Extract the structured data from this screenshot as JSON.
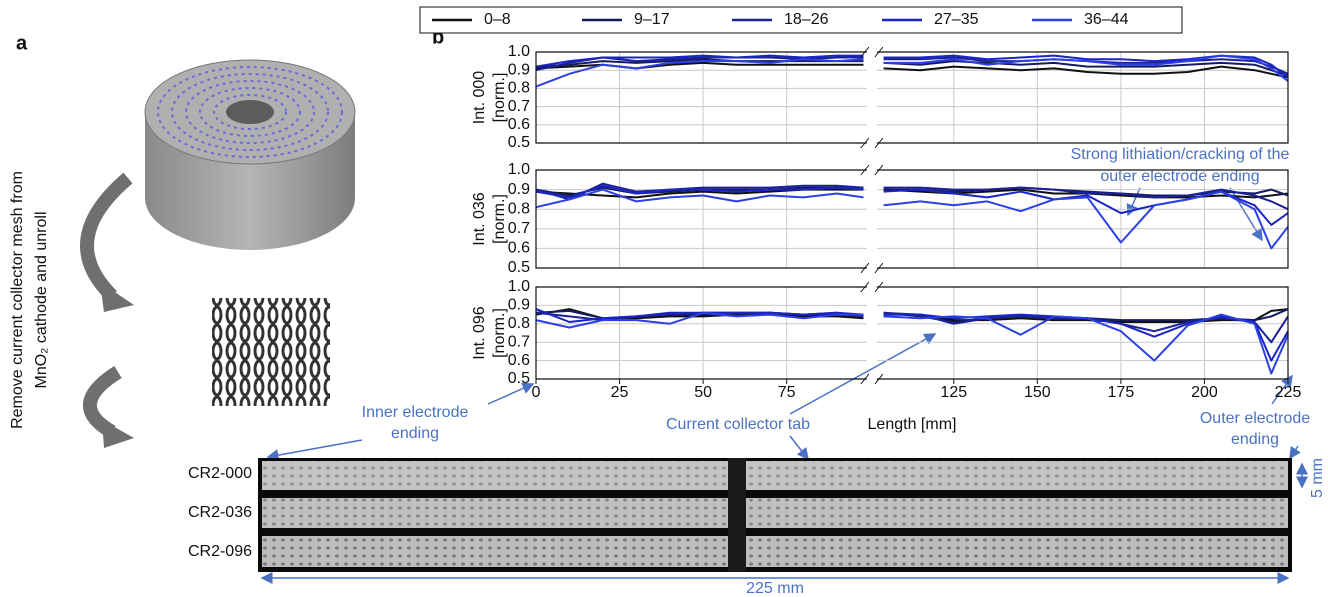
{
  "panel_labels": [
    "a",
    "b"
  ],
  "caption_lines": [
    "Remove current collector mesh from",
    "MnO₂ cathode and unroll"
  ],
  "annotations": {
    "lithiation": [
      "Strong lithiation/cracking of the",
      "outer electrode ending"
    ],
    "inner": [
      "Inner electrode",
      "ending"
    ],
    "tab": "Current collector tab",
    "outer": [
      "Outer electrode",
      "ending"
    ],
    "width": "5 mm",
    "length": "225 mm"
  },
  "strips": [
    "CR2-000",
    "CR2-036",
    "CR2-096"
  ],
  "chart_data": [
    {
      "type": "line",
      "ylabel": [
        "Int. 000",
        "[norm.]"
      ],
      "x": [
        0,
        10,
        20,
        30,
        40,
        50,
        60,
        70,
        80,
        90,
        98,
        101,
        104,
        115,
        125,
        135,
        145,
        155,
        165,
        175,
        185,
        195,
        205,
        215,
        220,
        225
      ],
      "xlim": [
        0,
        225
      ],
      "xticks": [
        0,
        25,
        50,
        75,
        125,
        150,
        175,
        200,
        225
      ],
      "xbreak": [
        99,
        102
      ],
      "ylim": [
        0.5,
        1.0
      ],
      "yticks": [
        0.5,
        0.6,
        0.7,
        0.8,
        0.9,
        {
          "value": 1.0,
          "label": "1.0"
        }
      ],
      "grid": true,
      "series": [
        {
          "name": "0–8",
          "color": "#111111",
          "values": [
            0.91,
            0.92,
            0.93,
            0.91,
            0.93,
            0.94,
            0.93,
            0.93,
            0.93,
            0.93,
            0.93,
            null,
            0.91,
            0.9,
            0.92,
            0.91,
            0.9,
            0.91,
            0.89,
            0.88,
            0.88,
            0.89,
            0.92,
            0.9,
            0.88,
            0.86
          ]
        },
        {
          "name": "9–17",
          "color": "#171c62",
          "values": [
            0.92,
            0.93,
            0.95,
            0.94,
            0.95,
            0.96,
            0.95,
            0.95,
            0.95,
            0.95,
            0.95,
            null,
            0.94,
            0.93,
            0.95,
            0.94,
            0.93,
            0.94,
            0.92,
            0.92,
            0.92,
            0.93,
            0.94,
            0.93,
            0.9,
            0.87
          ]
        },
        {
          "name": "18–26",
          "color": "#1b2298",
          "values": [
            0.9,
            0.94,
            0.97,
            0.95,
            0.96,
            0.97,
            0.97,
            0.97,
            0.96,
            0.97,
            0.97,
            null,
            0.96,
            0.96,
            0.97,
            0.95,
            0.95,
            0.96,
            0.95,
            0.94,
            0.94,
            0.95,
            0.96,
            0.95,
            0.92,
            0.88
          ]
        },
        {
          "name": "27–35",
          "color": "#1a25c2",
          "values": [
            0.92,
            0.95,
            0.97,
            0.97,
            0.97,
            0.98,
            0.97,
            0.98,
            0.97,
            0.98,
            0.98,
            null,
            0.97,
            0.97,
            0.98,
            0.96,
            0.97,
            0.98,
            0.96,
            0.96,
            0.95,
            0.96,
            0.98,
            0.97,
            0.93,
            0.86
          ]
        },
        {
          "name": "36–44",
          "color": "#2b40e6",
          "values": [
            0.81,
            0.88,
            0.93,
            0.91,
            0.94,
            0.95,
            0.95,
            0.94,
            0.96,
            0.95,
            0.96,
            null,
            0.94,
            0.94,
            0.96,
            0.93,
            0.95,
            0.96,
            0.95,
            0.93,
            0.93,
            0.95,
            0.98,
            0.96,
            0.91,
            0.84
          ]
        }
      ]
    },
    {
      "type": "line",
      "ylabel": [
        "Int. 036",
        "[norm.]"
      ],
      "x": [
        0,
        10,
        20,
        30,
        40,
        50,
        60,
        70,
        80,
        90,
        98,
        101,
        104,
        115,
        125,
        135,
        145,
        155,
        165,
        175,
        185,
        195,
        205,
        215,
        220,
        225
      ],
      "xlim": [
        0,
        225
      ],
      "xticks": [
        0,
        25,
        50,
        75,
        125,
        150,
        175,
        200,
        225
      ],
      "xbreak": [
        99,
        102
      ],
      "ylim": [
        0.5,
        1.0
      ],
      "yticks": [
        0.5,
        0.6,
        0.7,
        0.8,
        0.9,
        {
          "value": 1.0,
          "label": "1.0"
        }
      ],
      "grid": true,
      "series": [
        {
          "color": "#111111",
          "values": [
            0.89,
            0.88,
            0.87,
            0.86,
            0.88,
            0.89,
            0.88,
            0.89,
            0.9,
            0.9,
            0.9,
            null,
            0.9,
            0.89,
            0.88,
            0.89,
            0.9,
            0.88,
            0.88,
            0.87,
            0.86,
            0.86,
            0.87,
            0.86,
            0.87,
            0.88
          ]
        },
        {
          "color": "#171c62",
          "values": [
            0.9,
            0.87,
            0.91,
            0.88,
            0.89,
            0.9,
            0.9,
            0.9,
            0.91,
            0.91,
            0.91,
            null,
            0.9,
            0.9,
            0.89,
            0.9,
            0.91,
            0.9,
            0.89,
            0.88,
            0.87,
            0.87,
            0.89,
            0.88,
            0.9,
            0.87
          ]
        },
        {
          "color": "#1b2298",
          "values": [
            0.9,
            0.85,
            0.93,
            0.89,
            0.9,
            0.91,
            0.91,
            0.91,
            0.92,
            0.92,
            0.91,
            null,
            0.91,
            0.91,
            0.9,
            0.9,
            0.91,
            0.9,
            0.88,
            0.88,
            0.86,
            0.87,
            0.9,
            0.87,
            0.84,
            0.8
          ]
        },
        {
          "color": "#1a25c2",
          "values": [
            0.89,
            0.86,
            0.92,
            0.88,
            0.9,
            0.9,
            0.89,
            0.9,
            0.9,
            0.91,
            0.9,
            null,
            0.89,
            0.9,
            0.88,
            0.86,
            0.89,
            0.85,
            0.87,
            0.78,
            0.82,
            0.85,
            0.89,
            0.82,
            0.72,
            0.78
          ]
        },
        {
          "color": "#2b40e6",
          "values": [
            0.81,
            0.85,
            0.9,
            0.84,
            0.86,
            0.87,
            0.84,
            0.87,
            0.86,
            0.88,
            0.86,
            null,
            0.82,
            0.84,
            0.82,
            0.84,
            0.79,
            0.85,
            0.86,
            0.63,
            0.82,
            0.85,
            0.89,
            0.8,
            0.6,
            0.71
          ]
        }
      ]
    },
    {
      "type": "line",
      "ylabel": [
        "Int. 096",
        "[norm.]"
      ],
      "xlabel": "Length [mm]",
      "x": [
        0,
        10,
        20,
        30,
        40,
        50,
        60,
        70,
        80,
        90,
        98,
        101,
        104,
        115,
        125,
        135,
        145,
        155,
        165,
        175,
        185,
        195,
        205,
        215,
        220,
        225
      ],
      "xlim": [
        0,
        225
      ],
      "xticks": [
        0,
        25,
        50,
        75,
        125,
        150,
        175,
        200,
        225
      ],
      "xbreak": [
        99,
        102
      ],
      "ylim": [
        0.5,
        1.0
      ],
      "yticks": [
        0.5,
        0.6,
        0.7,
        0.8,
        0.9,
        {
          "value": 1.0,
          "label": "1.0"
        }
      ],
      "grid": true,
      "series": [
        {
          "color": "#111111",
          "values": [
            0.85,
            0.88,
            0.83,
            0.83,
            0.84,
            0.84,
            0.85,
            0.85,
            0.84,
            0.84,
            0.83,
            null,
            0.85,
            0.85,
            0.82,
            0.82,
            0.83,
            0.82,
            0.82,
            0.81,
            0.81,
            0.81,
            0.82,
            0.82,
            0.87,
            0.88
          ]
        },
        {
          "color": "#171c62",
          "values": [
            0.86,
            0.87,
            0.83,
            0.84,
            0.85,
            0.85,
            0.85,
            0.86,
            0.85,
            0.85,
            0.84,
            null,
            0.86,
            0.84,
            0.81,
            0.83,
            0.84,
            0.83,
            0.83,
            0.82,
            0.82,
            0.82,
            0.83,
            0.82,
            0.84,
            0.88
          ]
        },
        {
          "color": "#1b2298",
          "values": [
            0.86,
            0.84,
            0.82,
            0.84,
            0.85,
            0.86,
            0.86,
            0.86,
            0.85,
            0.86,
            0.84,
            null,
            0.86,
            0.85,
            0.8,
            0.83,
            0.84,
            0.83,
            0.83,
            0.8,
            0.76,
            0.81,
            0.83,
            0.81,
            0.7,
            0.84
          ]
        },
        {
          "color": "#1a25c2",
          "values": [
            0.88,
            0.81,
            0.83,
            0.84,
            0.86,
            0.86,
            0.86,
            0.86,
            0.85,
            0.86,
            0.85,
            null,
            0.85,
            0.85,
            0.83,
            0.84,
            0.85,
            0.84,
            0.83,
            0.8,
            0.73,
            0.8,
            0.84,
            0.81,
            0.6,
            0.76
          ]
        },
        {
          "color": "#2b40e6",
          "values": [
            0.82,
            0.78,
            0.82,
            0.82,
            0.8,
            0.86,
            0.84,
            0.85,
            0.83,
            0.85,
            0.85,
            null,
            0.84,
            0.83,
            0.84,
            0.83,
            0.74,
            0.84,
            0.83,
            0.76,
            0.6,
            0.79,
            0.85,
            0.8,
            0.53,
            0.74
          ]
        }
      ]
    }
  ]
}
